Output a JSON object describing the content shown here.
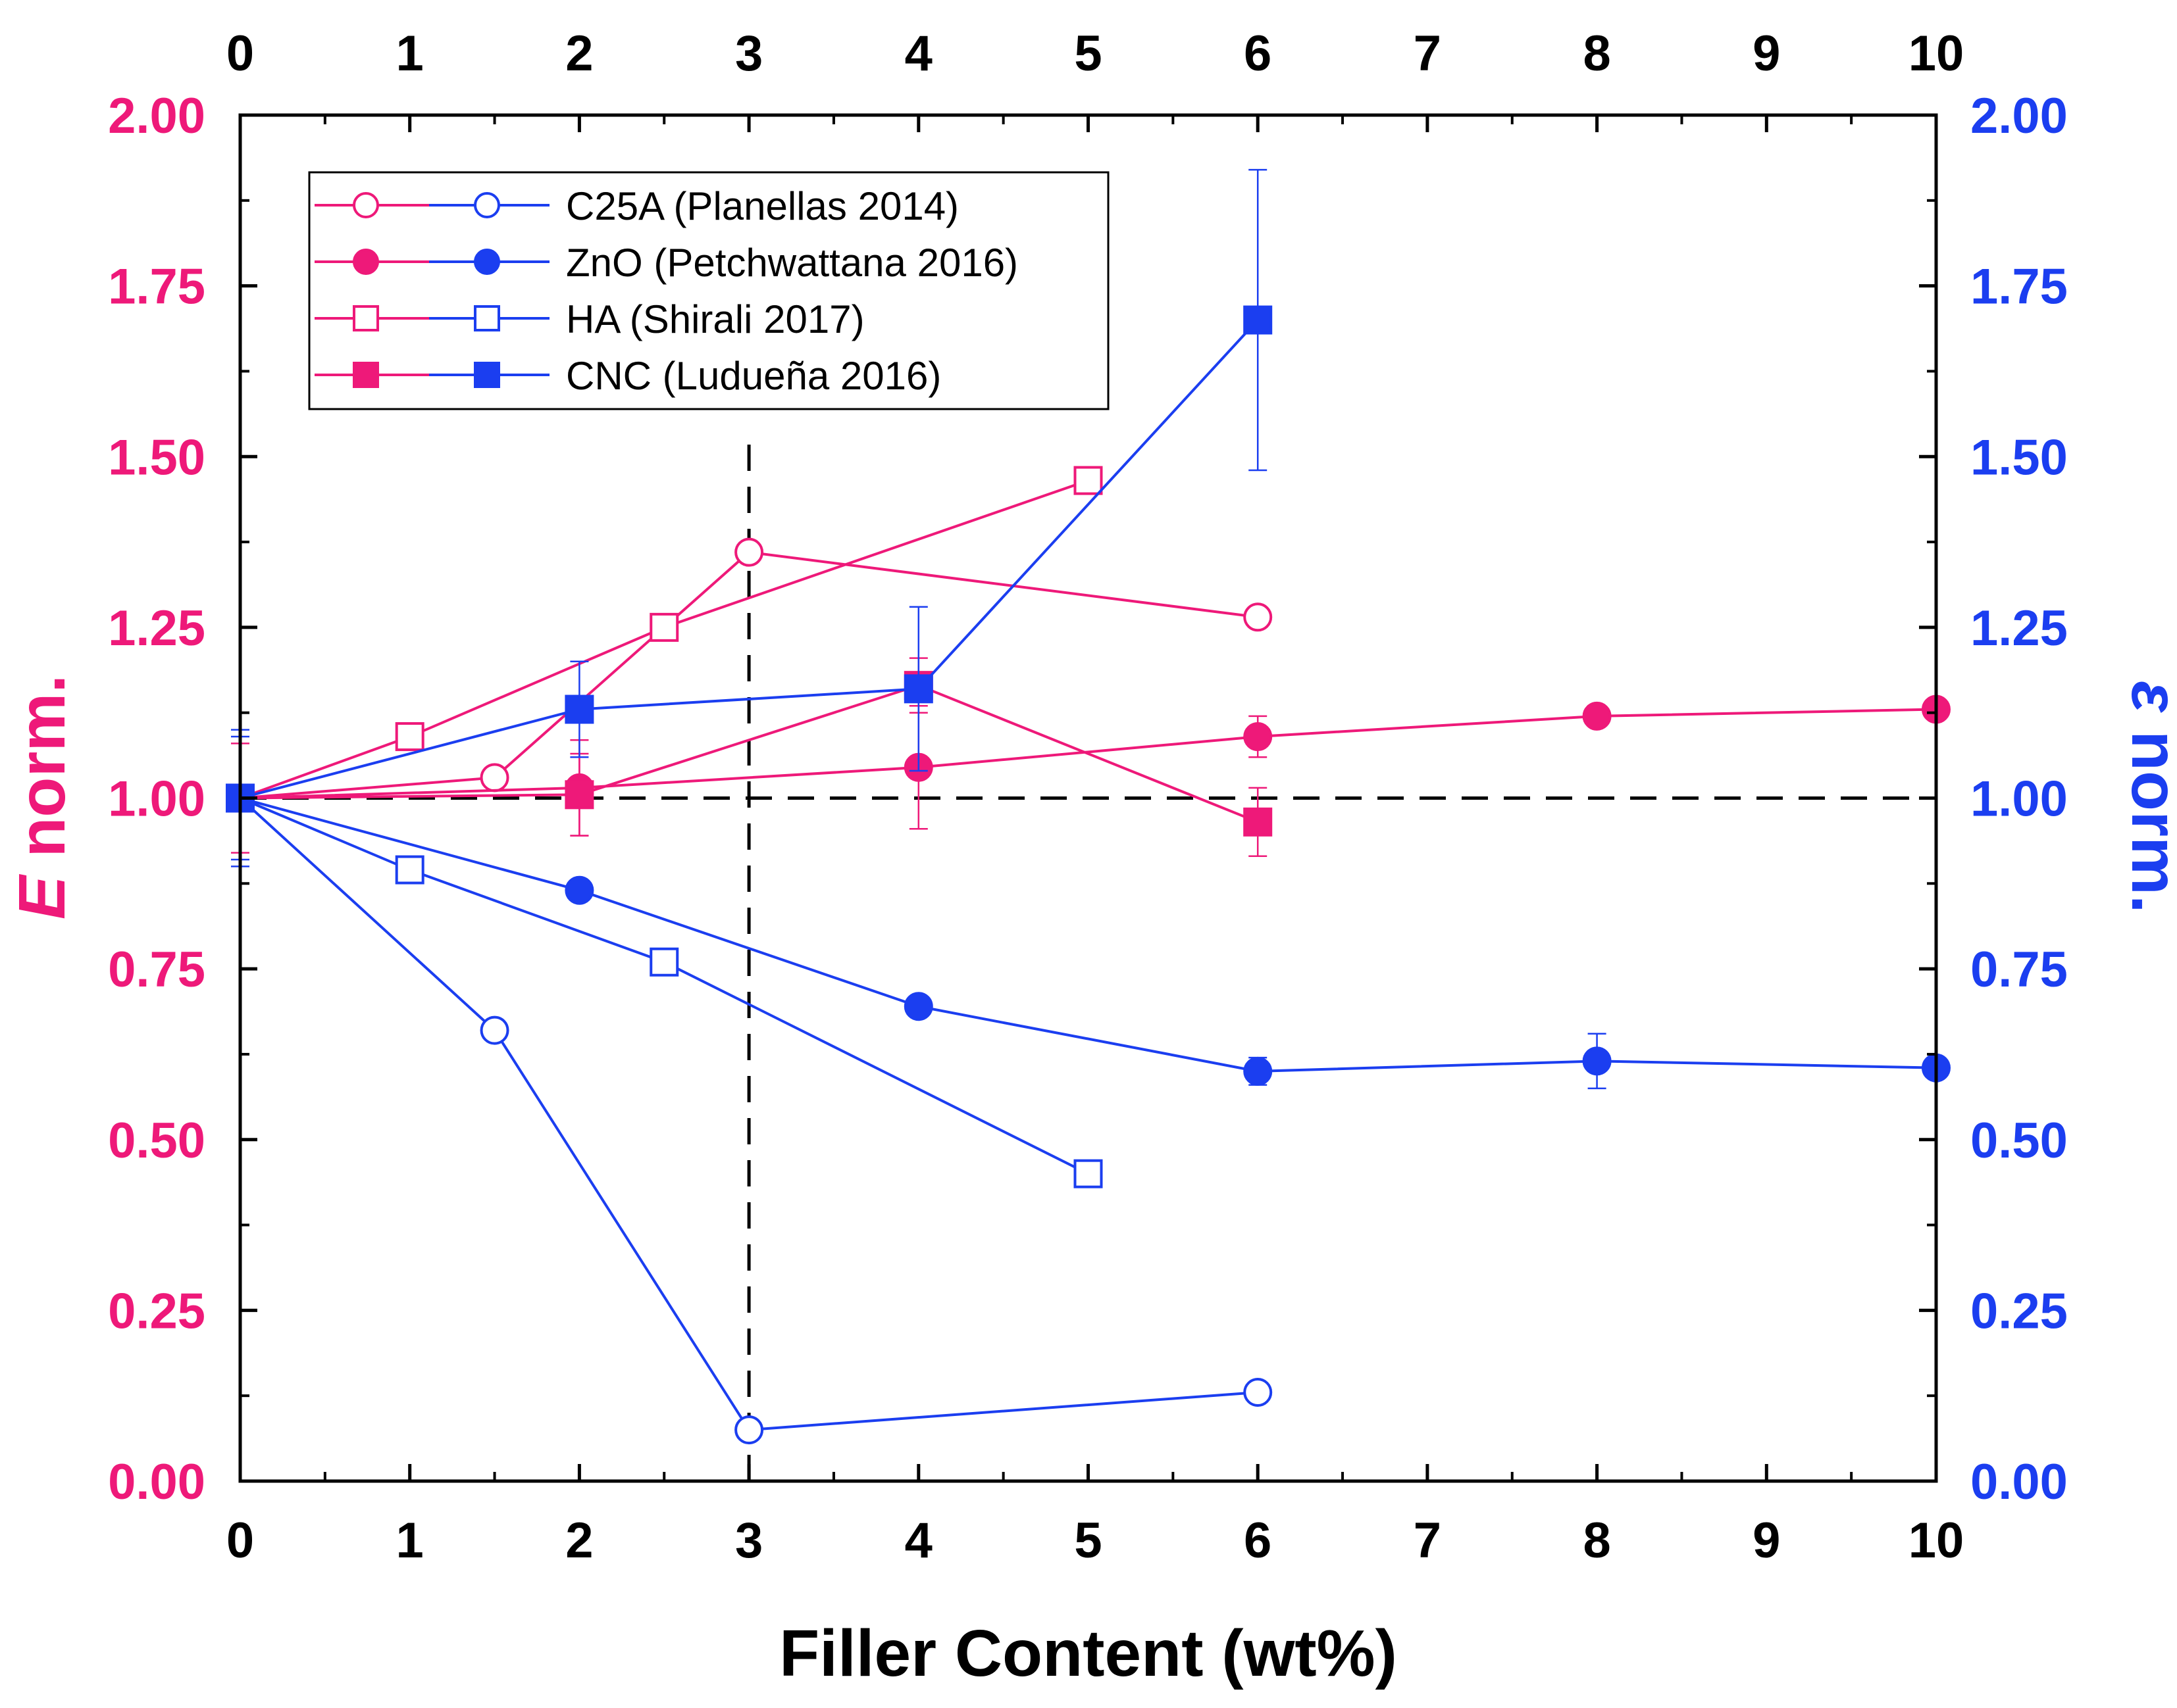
{
  "chart_data": {
    "type": "line",
    "xlabel": "Filler Content (wt%)",
    "ylabel_left": {
      "italic": "E",
      "rest": " norm."
    },
    "ylabel_right": {
      "italic": "ε",
      "rest": " norm."
    },
    "xlim": [
      0,
      10
    ],
    "ylim_left": [
      0,
      2
    ],
    "ylim_right": [
      0,
      2
    ],
    "x_ticks": [
      "0",
      "1",
      "2",
      "3",
      "4",
      "5",
      "6",
      "7",
      "8",
      "9",
      "10"
    ],
    "y_ticks": [
      "0.00",
      "0.25",
      "0.50",
      "0.75",
      "1.00",
      "1.25",
      "1.50",
      "1.75",
      "2.00"
    ],
    "reference_lines": {
      "horizontal_y": 1.0,
      "vertical_x": 3
    },
    "colors": {
      "E": "#ee1979",
      "strain": "#1b3ef0",
      "frame": "#000000"
    },
    "legend": {
      "position": "top-left",
      "entries": [
        {
          "label": "C25A (Planellas 2014)",
          "marker": "circle",
          "filled": false
        },
        {
          "label": "ZnO (Petchwattana 2016)",
          "marker": "circle",
          "filled": true
        },
        {
          "label": "HA (Shirali 2017)",
          "marker": "square",
          "filled": false
        },
        {
          "label": "CNC (Ludueña 2016)",
          "marker": "square",
          "filled": true
        }
      ]
    },
    "series": [
      {
        "name": "C25A (Planellas 2014) - E norm.",
        "property": "E",
        "marker": "circle",
        "filled": false,
        "x": [
          0,
          1.5,
          3,
          6
        ],
        "y": [
          1.0,
          1.03,
          1.36,
          1.265
        ],
        "err": [
          0,
          0,
          0,
          0
        ]
      },
      {
        "name": "C25A (Planellas 2014) - ε norm.",
        "property": "strain",
        "marker": "circle",
        "filled": false,
        "x": [
          0,
          1.5,
          3,
          6
        ],
        "y": [
          1.0,
          0.66,
          0.075,
          0.13
        ],
        "err": [
          0,
          0,
          0,
          0
        ]
      },
      {
        "name": "ZnO (Petchwattana 2016) - E norm.",
        "property": "E",
        "marker": "circle",
        "filled": true,
        "x": [
          0,
          2,
          4,
          6,
          8,
          10
        ],
        "y": [
          1.0,
          1.015,
          1.045,
          1.09,
          1.12,
          1.13
        ],
        "err": [
          0.08,
          0.07,
          0.09,
          0.03,
          0,
          0
        ]
      },
      {
        "name": "ZnO (Petchwattana 2016) - ε norm.",
        "property": "strain",
        "marker": "circle",
        "filled": true,
        "x": [
          0,
          2,
          4,
          6,
          8,
          10
        ],
        "y": [
          1.0,
          0.865,
          0.695,
          0.6,
          0.615,
          0.605
        ],
        "err": [
          0.09,
          0,
          0,
          0.02,
          0.04,
          0
        ]
      },
      {
        "name": "HA (Shirali 2017) - E norm.",
        "property": "E",
        "marker": "square",
        "filled": false,
        "x": [
          0,
          1,
          2.5,
          5
        ],
        "y": [
          1.0,
          1.09,
          1.25,
          1.465
        ],
        "err": [
          0,
          0,
          0,
          0
        ]
      },
      {
        "name": "HA (Shirali 2017) - ε norm.",
        "property": "strain",
        "marker": "square",
        "filled": false,
        "x": [
          0,
          1,
          2.5,
          5
        ],
        "y": [
          1.0,
          0.895,
          0.76,
          0.45
        ],
        "err": [
          0,
          0,
          0,
          0
        ]
      },
      {
        "name": "CNC (Ludueña 2016) - E norm.",
        "property": "E",
        "marker": "square",
        "filled": true,
        "x": [
          0,
          2,
          4,
          6
        ],
        "y": [
          1.0,
          1.005,
          1.165,
          0.965
        ],
        "err": [
          0,
          0.06,
          0.04,
          0.05
        ]
      },
      {
        "name": "CNC (Ludueña 2016) - ε norm.",
        "property": "strain",
        "marker": "square",
        "filled": true,
        "x": [
          0,
          2,
          4,
          6
        ],
        "y": [
          1.0,
          1.13,
          1.16,
          1.7
        ],
        "err": [
          0.1,
          0.07,
          0.12,
          0.22
        ]
      }
    ]
  }
}
